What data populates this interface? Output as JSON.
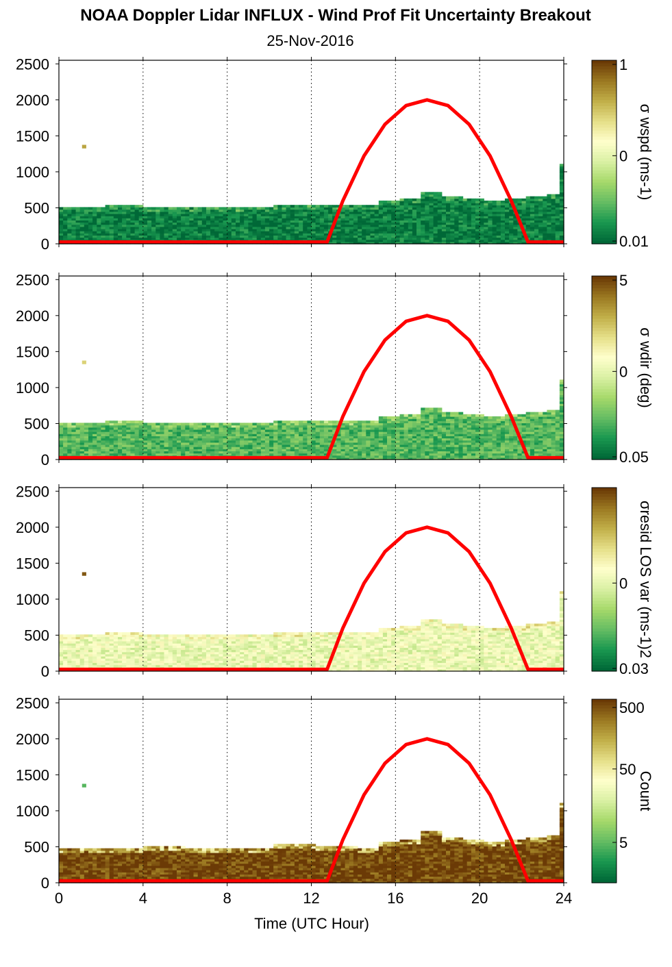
{
  "figure": {
    "title": "NOAA Doppler Lidar INFLUX - Wind Prof Fit Uncertainty Breakout",
    "date": "25-Nov-2016",
    "xlabel": "Time (UTC Hour)"
  },
  "colors": {
    "colormap": [
      "#006837",
      "#1a9850",
      "#66bd63",
      "#a6d96a",
      "#d9f0a3",
      "#ffffcc",
      "#e6e08a",
      "#c2b04a",
      "#9c7a22",
      "#6b3a06"
    ],
    "daylight_curve": "#ff0000",
    "grid": "#000000"
  },
  "chart_data": [
    {
      "type": "heatmap",
      "panel": 1,
      "colorbar_label": "σ wspd (ms-1)",
      "colorbar_scale": "log",
      "colorbar_ticks": [
        "1",
        "0",
        "0.01"
      ],
      "xlim": [
        0,
        24
      ],
      "ylim": [
        0,
        2550
      ],
      "xticks": [
        0,
        4,
        8,
        12,
        16,
        20,
        24
      ],
      "yticks": [
        0,
        500,
        1000,
        1500,
        2000,
        2500
      ],
      "x_gridlines": [
        4,
        8,
        12,
        16,
        20,
        24
      ],
      "data_top_height_m": [
        [
          0,
          500
        ],
        [
          2,
          520
        ],
        [
          4,
          500
        ],
        [
          6,
          490
        ],
        [
          8,
          500
        ],
        [
          10,
          520
        ],
        [
          12,
          530
        ],
        [
          14,
          520
        ],
        [
          15,
          600
        ],
        [
          16,
          620
        ],
        [
          17,
          700
        ],
        [
          18,
          650
        ],
        [
          19,
          620
        ],
        [
          20,
          600
        ],
        [
          21,
          620
        ],
        [
          22,
          650
        ],
        [
          23,
          680
        ],
        [
          23.6,
          1100
        ]
      ],
      "scattered_values": [
        {
          "time": 1.2,
          "height": 1350,
          "level": 0.8
        }
      ],
      "typical_level": 0.05,
      "daylight_curve": {
        "x": [
          0,
          12.75,
          13.5,
          14.5,
          15.5,
          16.5,
          17.5,
          18.5,
          19.5,
          20.5,
          21.5,
          22.3,
          24
        ],
        "y": [
          25,
          25,
          600,
          1220,
          1660,
          1920,
          2000,
          1920,
          1660,
          1220,
          600,
          25,
          25
        ]
      }
    },
    {
      "type": "heatmap",
      "panel": 2,
      "colorbar_label": "σ wdir (deg)",
      "colorbar_scale": "log",
      "colorbar_ticks": [
        "5",
        "0",
        "0.05"
      ],
      "xlim": [
        0,
        24
      ],
      "ylim": [
        0,
        2550
      ],
      "xticks": [
        0,
        4,
        8,
        12,
        16,
        20,
        24
      ],
      "yticks": [
        0,
        500,
        1000,
        1500,
        2000,
        2500
      ],
      "x_gridlines": [
        4,
        8,
        12,
        16,
        20,
        24
      ],
      "data_top_height_m": [
        [
          0,
          500
        ],
        [
          2,
          520
        ],
        [
          4,
          500
        ],
        [
          6,
          490
        ],
        [
          8,
          500
        ],
        [
          10,
          520
        ],
        [
          12,
          530
        ],
        [
          14,
          520
        ],
        [
          15,
          600
        ],
        [
          16,
          620
        ],
        [
          17,
          700
        ],
        [
          18,
          650
        ],
        [
          19,
          620
        ],
        [
          20,
          600
        ],
        [
          21,
          620
        ],
        [
          22,
          650
        ],
        [
          23,
          680
        ],
        [
          23.6,
          1100
        ]
      ],
      "scattered_values": [
        {
          "time": 1.2,
          "height": 1350,
          "level": 0.7
        }
      ],
      "typical_level": 0.2,
      "daylight_curve": {
        "x": [
          0,
          12.75,
          13.5,
          14.5,
          15.5,
          16.5,
          17.5,
          18.5,
          19.5,
          20.5,
          21.5,
          22.3,
          24
        ],
        "y": [
          25,
          25,
          600,
          1220,
          1660,
          1920,
          2000,
          1920,
          1660,
          1220,
          600,
          25,
          25
        ]
      }
    },
    {
      "type": "heatmap",
      "panel": 3,
      "colorbar_label": "σresid LOS var (ms-1)2",
      "colorbar_scale": "log",
      "colorbar_ticks": [
        "0",
        "0.03"
      ],
      "xlim": [
        0,
        24
      ],
      "ylim": [
        0,
        2550
      ],
      "xticks": [
        0,
        4,
        8,
        12,
        16,
        20,
        24
      ],
      "yticks": [
        0,
        500,
        1000,
        1500,
        2000,
        2500
      ],
      "x_gridlines": [
        4,
        8,
        12,
        16,
        20,
        24
      ],
      "data_top_height_m": [
        [
          0,
          500
        ],
        [
          2,
          520
        ],
        [
          4,
          500
        ],
        [
          6,
          490
        ],
        [
          8,
          500
        ],
        [
          10,
          520
        ],
        [
          12,
          530
        ],
        [
          14,
          520
        ],
        [
          15,
          600
        ],
        [
          16,
          620
        ],
        [
          17,
          700
        ],
        [
          18,
          650
        ],
        [
          19,
          620
        ],
        [
          20,
          600
        ],
        [
          21,
          620
        ],
        [
          22,
          650
        ],
        [
          23,
          680
        ],
        [
          23.6,
          1100
        ]
      ],
      "scattered_values": [
        {
          "time": 1.2,
          "height": 1350,
          "level": 0.95
        }
      ],
      "typical_level": 0.5,
      "daylight_curve": {
        "x": [
          0,
          12.75,
          13.5,
          14.5,
          15.5,
          16.5,
          17.5,
          18.5,
          19.5,
          20.5,
          21.5,
          22.3,
          24
        ],
        "y": [
          25,
          25,
          600,
          1220,
          1660,
          1920,
          2000,
          1920,
          1660,
          1220,
          600,
          25,
          25
        ]
      }
    },
    {
      "type": "heatmap",
      "panel": 4,
      "colorbar_label": "Count",
      "colorbar_scale": "log",
      "colorbar_ticks": [
        "500",
        "50",
        "5"
      ],
      "xlim": [
        0,
        24
      ],
      "ylim": [
        0,
        2550
      ],
      "xticks": [
        0,
        4,
        8,
        12,
        16,
        20,
        24
      ],
      "yticks": [
        0,
        500,
        1000,
        1500,
        2000,
        2500
      ],
      "x_gridlines": [
        4,
        8,
        12,
        16,
        20,
        24
      ],
      "data_top_height_m": [
        [
          0,
          460
        ],
        [
          2,
          480
        ],
        [
          4,
          500
        ],
        [
          6,
          470
        ],
        [
          8,
          480
        ],
        [
          10,
          520
        ],
        [
          12,
          500
        ],
        [
          14,
          480
        ],
        [
          15,
          560
        ],
        [
          16,
          580
        ],
        [
          17,
          700
        ],
        [
          18,
          620
        ],
        [
          19,
          600
        ],
        [
          20,
          570
        ],
        [
          21,
          590
        ],
        [
          22,
          620
        ],
        [
          23,
          660
        ],
        [
          23.6,
          1100
        ]
      ],
      "scattered_values": [
        {
          "time": 1.2,
          "height": 1350,
          "level": 0.2
        }
      ],
      "typical_level": 0.98,
      "daylight_curve": {
        "x": [
          0,
          12.75,
          13.5,
          14.5,
          15.5,
          16.5,
          17.5,
          18.5,
          19.5,
          20.5,
          21.5,
          22.3,
          24
        ],
        "y": [
          25,
          25,
          600,
          1220,
          1660,
          1920,
          2000,
          1920,
          1660,
          1220,
          600,
          25,
          25
        ]
      }
    }
  ]
}
